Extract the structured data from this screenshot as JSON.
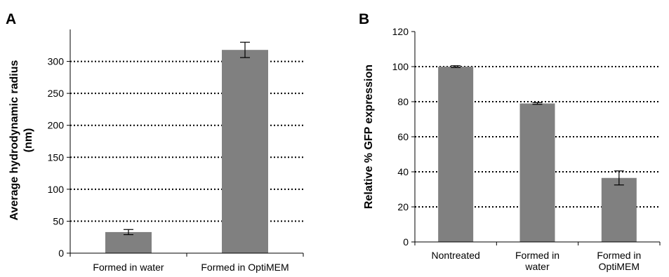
{
  "chart_data": [
    {
      "type": "bar",
      "panel_label": "A",
      "categories": [
        "Formed in water",
        "Formed in OptiMEM"
      ],
      "category_lines": [
        [
          "Formed in water"
        ],
        [
          "Formed in OptiMEM"
        ]
      ],
      "values": [
        33,
        318
      ],
      "errors": [
        4,
        12
      ],
      "ylabel_lines": [
        "Average hydrodynamic radius",
        "(nm)"
      ],
      "ylim": [
        0,
        350
      ],
      "yticks": [
        0,
        50,
        100,
        150,
        200,
        250,
        300
      ],
      "grid_values": [
        50,
        100,
        150,
        200,
        250,
        300
      ],
      "grid": true,
      "bar_color": "#808080"
    },
    {
      "type": "bar",
      "panel_label": "B",
      "categories": [
        "Nontreated",
        "Formed in water",
        "Formed in OptiMEM"
      ],
      "category_lines": [
        [
          "Nontreated"
        ],
        [
          "Formed in",
          "water"
        ],
        [
          "Formed in",
          "OptiMEM"
        ]
      ],
      "values": [
        100,
        79,
        36.5
      ],
      "errors": [
        0.5,
        0.5,
        4
      ],
      "ylabel_lines": [
        "Relative % GFP expression"
      ],
      "ylim": [
        0,
        120
      ],
      "yticks": [
        0,
        20,
        40,
        60,
        80,
        100,
        120
      ],
      "grid_values": [
        20,
        40,
        60,
        80,
        100
      ],
      "grid": true,
      "bar_color": "#808080"
    }
  ]
}
